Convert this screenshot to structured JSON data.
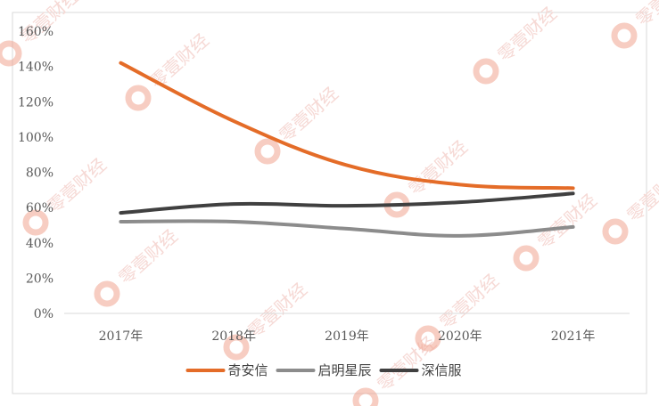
{
  "chart_data": {
    "type": "line",
    "categories": [
      "2017年",
      "2018年",
      "2019年",
      "2020年",
      "2021年"
    ],
    "series": [
      {
        "name": "奇安信",
        "values": [
          142,
          109,
          84,
          73,
          71
        ],
        "color": "#e46c28"
      },
      {
        "name": "启明星辰",
        "values": [
          52,
          52,
          48,
          44,
          49
        ],
        "color": "#8c8c8c"
      },
      {
        "name": "深信服",
        "values": [
          57,
          62,
          61,
          63,
          68
        ],
        "color": "#404040"
      }
    ],
    "yticks": [
      "0%",
      "20%",
      "40%",
      "60%",
      "80%",
      "100%",
      "120%",
      "140%",
      "160%"
    ],
    "ylim": [
      0,
      160
    ],
    "grid": false,
    "legend_position": "bottom"
  },
  "watermark": {
    "text": "零壹财经",
    "logo_color": "#f0a48f"
  }
}
